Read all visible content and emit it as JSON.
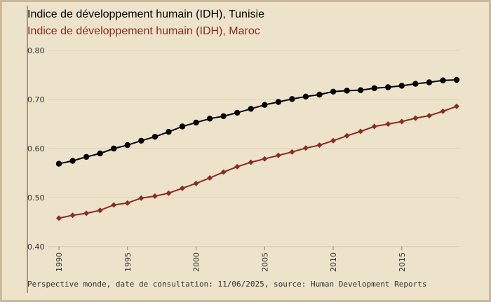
{
  "colors": {
    "background": "#ece3ca",
    "frame": "#c9b99a",
    "tunisia": "#000000",
    "morocco": "#8b2c22",
    "grid": "#ddd2b6",
    "text": "#333333"
  },
  "title_tunisia": "Indice de développement humain (IDH), Tunisie",
  "title_morocco": "Indice de développement humain (IDH), Maroc",
  "source": "Perspective monde, date de consultation: 11/06/2025, source: Human Development Reports",
  "chart_data": {
    "type": "line",
    "title": "Indice de développement humain (IDH), Tunisie / Indice de développement humain (IDH), Maroc",
    "xlabel": "",
    "ylabel": "",
    "xlim": [
      1990,
      2019
    ],
    "ylim": [
      0.4,
      0.8
    ],
    "y_ticks": [
      0.4,
      0.5,
      0.6,
      0.7,
      0.8
    ],
    "y_tick_labels": [
      "0.40",
      "0.50",
      "0.60",
      "0.70",
      "0.80"
    ],
    "x_ticks": [
      1990,
      1995,
      2000,
      2005,
      2010,
      2015
    ],
    "x_tick_labels": [
      "1990",
      "1995",
      "2000",
      "2005",
      "2010",
      "2015"
    ],
    "grid": true,
    "x": [
      1990,
      1991,
      1992,
      1993,
      1994,
      1995,
      1996,
      1997,
      1998,
      1999,
      2000,
      2001,
      2002,
      2003,
      2004,
      2005,
      2006,
      2007,
      2008,
      2009,
      2010,
      2011,
      2012,
      2013,
      2014,
      2015,
      2016,
      2017,
      2018,
      2019
    ],
    "series": [
      {
        "name": "Tunisie",
        "color": "#000000",
        "marker": "circle",
        "values": [
          0.569,
          0.575,
          0.583,
          0.59,
          0.6,
          0.607,
          0.616,
          0.624,
          0.634,
          0.645,
          0.653,
          0.661,
          0.666,
          0.673,
          0.681,
          0.689,
          0.695,
          0.701,
          0.706,
          0.71,
          0.716,
          0.718,
          0.719,
          0.723,
          0.725,
          0.728,
          0.732,
          0.735,
          0.739,
          0.74
        ]
      },
      {
        "name": "Maroc",
        "color": "#8b2c22",
        "marker": "diamond",
        "values": [
          0.458,
          0.464,
          0.468,
          0.474,
          0.485,
          0.489,
          0.499,
          0.503,
          0.509,
          0.519,
          0.529,
          0.54,
          0.552,
          0.563,
          0.572,
          0.579,
          0.586,
          0.593,
          0.601,
          0.607,
          0.616,
          0.626,
          0.635,
          0.645,
          0.65,
          0.655,
          0.662,
          0.667,
          0.676,
          0.686
        ]
      }
    ]
  }
}
